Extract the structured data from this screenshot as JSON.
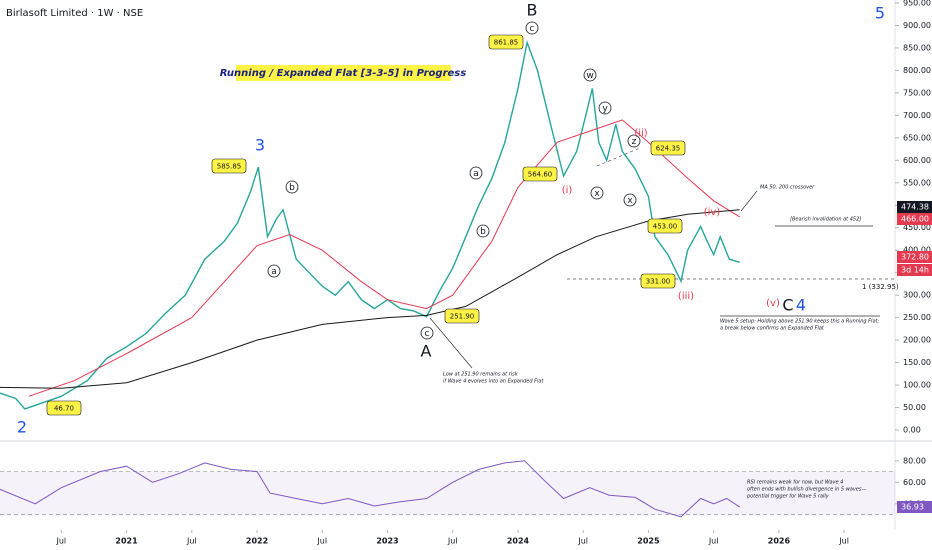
{
  "chart_data": [
    {
      "type": "line",
      "title": "Birlasoft Limited · 1W · NSE",
      "headline": "Running / Expanded Flat [3-3-5] in Progress",
      "xlim": [
        2020.03,
        2026.89
      ],
      "xticks": [
        {
          "value": 2020.5,
          "label": "Jul"
        },
        2021,
        {
          "value": 2021.5,
          "label": "Jul"
        },
        2022,
        {
          "value": 2022.5,
          "label": "Jul"
        },
        2023,
        {
          "value": 2023.5,
          "label": "Jul"
        },
        2024,
        {
          "value": 2024.5,
          "label": "Jul"
        },
        2025,
        {
          "value": 2025.5,
          "label": "Jul"
        },
        2026,
        {
          "value": 2026.5,
          "label": "Jul"
        }
      ],
      "ylim": [
        0,
        950
      ],
      "yticks": [
        {
          "value": 0,
          "label": "0.00"
        },
        {
          "value": 50,
          "label": "50.00"
        },
        {
          "value": 100,
          "label": "100.00"
        },
        {
          "value": 150,
          "label": "150.00"
        },
        {
          "value": 200,
          "label": "200.00"
        },
        {
          "value": 250,
          "label": "250.00"
        },
        {
          "value": 300,
          "label": "300.00"
        },
        {
          "value": 350,
          "label": "350.00"
        },
        {
          "value": 400,
          "label": "400.00"
        },
        {
          "value": 450,
          "label": "450.00"
        },
        {
          "value": 500,
          "label": "500.00"
        },
        {
          "value": 550,
          "label": "550.00"
        },
        {
          "value": 600,
          "label": "600.00"
        },
        {
          "value": 650,
          "label": "650.00"
        },
        {
          "value": 700,
          "label": "700.00"
        },
        {
          "value": 750,
          "label": "750.00"
        },
        {
          "value": 800,
          "label": "800.00"
        },
        {
          "value": 850,
          "label": "850.00"
        },
        {
          "value": 900,
          "label": "900.00"
        },
        {
          "value": 950,
          "label": "950.00"
        }
      ],
      "series": [
        {
          "color": "#26a69a",
          "x": [
            2020.0,
            2020.15,
            2020.22,
            2020.5,
            2020.7,
            2020.85,
            2021.0,
            2021.15,
            2021.3,
            2021.45,
            2021.6,
            2021.75,
            2021.85,
            2021.95,
            2022.01,
            2022.08,
            2022.15,
            2022.2,
            2022.3,
            2022.4,
            2022.5,
            2022.6,
            2022.7,
            2022.8,
            2022.9,
            2023.0,
            2023.1,
            2023.2,
            2023.3,
            2023.4,
            2023.5,
            2023.6,
            2023.7,
            2023.8,
            2023.9,
            2024.0,
            2024.07,
            2024.15,
            2024.25,
            2024.35,
            2024.45,
            2024.52,
            2024.57,
            2024.62,
            2024.68,
            2024.75,
            2024.8,
            2024.9,
            2025.0,
            2025.05,
            2025.15,
            2025.25,
            2025.3,
            2025.4,
            2025.45,
            2025.5,
            2025.55,
            2025.62,
            2025.7
          ],
          "values": [
            85,
            70,
            47,
            75,
            110,
            160,
            185,
            215,
            260,
            300,
            380,
            420,
            460,
            530,
            585,
            430,
            470,
            490,
            380,
            350,
            320,
            300,
            330,
            290,
            270,
            290,
            270,
            265,
            252,
            310,
            360,
            430,
            500,
            560,
            640,
            760,
            862,
            800,
            680,
            565,
            620,
            700,
            760,
            640,
            600,
            680,
            620,
            580,
            520,
            430,
            390,
            331,
            400,
            453,
            420,
            390,
            430,
            380,
            373
          ]
        },
        {
          "color": "#e53950",
          "x": [
            2020.25,
            2020.6,
            2021.0,
            2021.5,
            2022.0,
            2022.25,
            2022.5,
            2022.8,
            2023.0,
            2023.3,
            2023.5,
            2023.8,
            2024.0,
            2024.3,
            2024.6,
            2024.8,
            2025.0,
            2025.3,
            2025.5,
            2025.7
          ],
          "values": [
            75,
            110,
            170,
            250,
            410,
            435,
            400,
            330,
            290,
            270,
            300,
            420,
            540,
            640,
            670,
            690,
            640,
            560,
            510,
            474
          ]
        },
        {
          "color": "#1a1a1a",
          "x": [
            2020.0,
            2020.5,
            2021.0,
            2021.5,
            2022.0,
            2022.5,
            2023.0,
            2023.3,
            2023.6,
            2024.0,
            2024.3,
            2024.6,
            2025.0,
            2025.3,
            2025.7
          ],
          "values": [
            95,
            93,
            105,
            150,
            200,
            235,
            250,
            255,
            275,
            340,
            390,
            430,
            465,
            480,
            490
          ]
        }
      ],
      "wave_labels": [
        "2",
        "3",
        "5",
        "A",
        "B",
        "C",
        "4"
      ],
      "circled_labels": [
        "a",
        "b",
        "c",
        "a",
        "b",
        "c",
        "w",
        "y",
        "x",
        "z",
        "x"
      ],
      "minor_labels": [
        "(i)",
        "(ii)",
        "(iii)",
        "(iv)",
        "(v)"
      ],
      "callouts": [
        "585.85",
        "46.70",
        "251.90",
        "861.85",
        "564.60",
        "624.35",
        "331.00",
        "453.00"
      ],
      "annotations": [
        "Low at 251.90 remains at risk",
        "if Wave 4 evolves into an Expanded Flat",
        "MA 50, 200 crossover",
        "[Bearish invalidation at 452]",
        "1 (332.95)",
        "Wave 5 setup: Holding above 251.90 keeps this a Running Flat;",
        "a break below confirms an Expanded Flat"
      ],
      "price_labels": [
        "474.38",
        "466.00",
        "372.80",
        "3d 14h"
      ]
    },
    {
      "type": "line",
      "ylim": [
        25,
        90
      ],
      "yticks": [
        {
          "value": 40,
          "label": "40.00"
        },
        {
          "value": 60,
          "label": "60.00"
        },
        {
          "value": 80,
          "label": "80.00"
        }
      ],
      "bands": [
        30,
        70
      ],
      "series": [
        {
          "color": "#7e57c2",
          "x": [
            2020.0,
            2020.3,
            2020.5,
            2020.8,
            2021.0,
            2021.2,
            2021.4,
            2021.6,
            2021.8,
            2022.0,
            2022.1,
            2022.3,
            2022.5,
            2022.7,
            2022.9,
            2023.1,
            2023.3,
            2023.5,
            2023.7,
            2023.9,
            2024.05,
            2024.2,
            2024.35,
            2024.55,
            2024.7,
            2024.9,
            2025.05,
            2025.25,
            2025.4,
            2025.5,
            2025.6,
            2025.7
          ],
          "values": [
            55,
            40,
            55,
            70,
            75,
            60,
            68,
            78,
            72,
            70,
            50,
            45,
            40,
            45,
            38,
            42,
            45,
            60,
            72,
            78,
            80,
            62,
            45,
            55,
            48,
            46,
            35,
            28,
            45,
            40,
            45,
            37
          ]
        }
      ],
      "annotations": [
        "RSI remains weak for now, but Wave 4",
        "often ends with bullish divergence in 5 waves—",
        "potential trigger for Wave 5 rally"
      ],
      "price_labels": [
        "36.93"
      ]
    }
  ]
}
